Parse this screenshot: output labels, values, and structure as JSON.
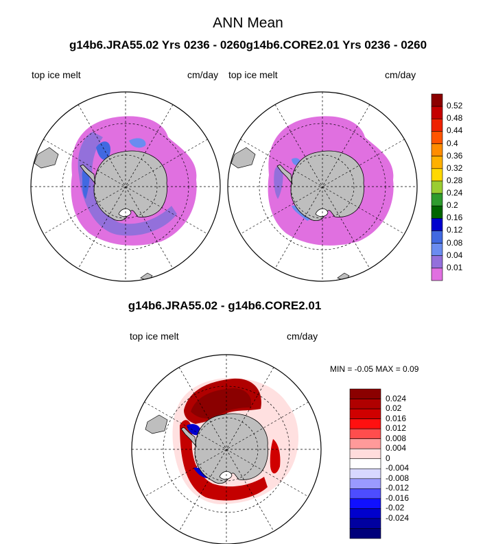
{
  "figure": {
    "title": "ANN Mean",
    "top_header": "g14b6.JRA55.02  Yrs 0236 - 0260g14b6.CORE2.01  Yrs 0236 - 0260",
    "diff_title": "g14b6.JRA55.02 - g14b6.CORE2.01"
  },
  "panels": [
    {
      "id": "jra55",
      "left_label": "top ice melt",
      "right_label": "cm/day"
    },
    {
      "id": "core2",
      "left_label": "top ice melt",
      "right_label": "cm/day"
    },
    {
      "id": "diff",
      "left_label": "top ice melt",
      "right_label": "cm/day",
      "min_max": "MIN =  -0.05 MAX =   0.09",
      "min": -0.05,
      "max": 0.09
    }
  ],
  "colorbar_top": {
    "labels": [
      "0.52",
      "0.48",
      "0.44",
      "0.4",
      "0.36",
      "0.32",
      "0.28",
      "0.24",
      "0.2",
      "0.16",
      "0.12",
      "0.08",
      "0.04",
      "0.01"
    ],
    "colors": [
      "#8b0000",
      "#c40000",
      "#ee2200",
      "#ff5500",
      "#ff8c00",
      "#ffb000",
      "#ffd800",
      "#9acd32",
      "#2e9b2e",
      "#006400",
      "#0000cd",
      "#4169e1",
      "#6a8cf0",
      "#9370db",
      "#e070e0"
    ]
  },
  "colorbar_diff": {
    "labels": [
      "0.024",
      "0.02",
      "0.016",
      "0.012",
      "0.008",
      "0.004",
      "0",
      "-0.004",
      "-0.008",
      "-0.012",
      "-0.016",
      "-0.02",
      "-0.024"
    ],
    "colors": [
      "#8b0000",
      "#b00000",
      "#d00000",
      "#ff1010",
      "#ff4d4d",
      "#ff9a9a",
      "#ffdcdc",
      "#ffffff",
      "#d8d8ff",
      "#9a9aff",
      "#4d4dff",
      "#1010ff",
      "#0000cd",
      "#0000a0",
      "#00007a"
    ]
  },
  "colors": {
    "land": "#bebebe",
    "outline": "#000000",
    "grid": "#000000"
  }
}
